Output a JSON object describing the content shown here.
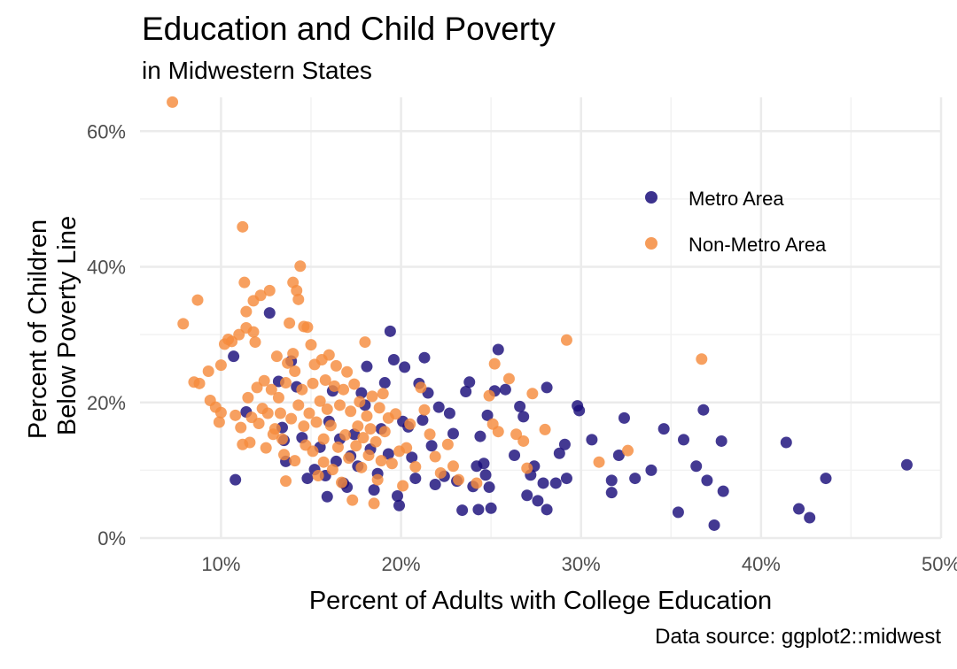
{
  "chart_data": {
    "type": "scatter",
    "title": "Education and Child Poverty",
    "subtitle": "in Midwestern States",
    "caption": "Data source: ggplot2::midwest",
    "xlabel": "Percent of Adults with College Education",
    "ylabel_lines": [
      "Percent of Children",
      "Below Poverty Line"
    ],
    "xlim": [
      5.5,
      50
    ],
    "ylim": [
      0,
      65
    ],
    "x_ticks": [
      10,
      20,
      30,
      40,
      50
    ],
    "x_tick_labels": [
      "10%",
      "20%",
      "30%",
      "40%",
      "50%"
    ],
    "y_ticks": [
      0,
      20,
      40,
      60
    ],
    "y_tick_labels": [
      "0%",
      "20%",
      "40%",
      "60%"
    ],
    "grid": true,
    "legend_position": "top-right",
    "colors": {
      "metro": "#1a0e7a",
      "nonmetro": "#f58b3d",
      "grid": "#ebebeb"
    },
    "series": [
      {
        "name": "Metro Area",
        "color": "#1a0e7a",
        "points": [
          [
            10.7,
            26.8
          ],
          [
            10.8,
            8.6
          ],
          [
            11.4,
            18.6
          ],
          [
            12.7,
            33.2
          ],
          [
            13.2,
            23.1
          ],
          [
            13.4,
            16.3
          ],
          [
            13.5,
            14.4
          ],
          [
            13.6,
            11.3
          ],
          [
            13.9,
            26.1
          ],
          [
            14.2,
            22.3
          ],
          [
            14.5,
            14.8
          ],
          [
            14.8,
            8.8
          ],
          [
            15.2,
            10.1
          ],
          [
            15.5,
            13.4
          ],
          [
            15.8,
            9.2
          ],
          [
            15.9,
            6.1
          ],
          [
            16.0,
            17.2
          ],
          [
            16.2,
            21.7
          ],
          [
            16.4,
            11.3
          ],
          [
            16.6,
            14.6
          ],
          [
            16.8,
            8.1
          ],
          [
            17.0,
            7.5
          ],
          [
            17.2,
            12.1
          ],
          [
            17.4,
            15.3
          ],
          [
            17.6,
            10.6
          ],
          [
            17.8,
            21.4
          ],
          [
            18.0,
            19.6
          ],
          [
            18.1,
            25.3
          ],
          [
            18.3,
            13.1
          ],
          [
            18.5,
            7.1
          ],
          [
            18.7,
            9.5
          ],
          [
            18.9,
            16.1
          ],
          [
            19.1,
            22.9
          ],
          [
            19.3,
            12.4
          ],
          [
            19.4,
            30.5
          ],
          [
            19.6,
            26.3
          ],
          [
            19.8,
            6.2
          ],
          [
            19.9,
            4.8
          ],
          [
            20.1,
            17.2
          ],
          [
            20.2,
            25.2
          ],
          [
            20.4,
            16.4
          ],
          [
            20.6,
            11.9
          ],
          [
            20.8,
            8.8
          ],
          [
            21.0,
            22.8
          ],
          [
            21.2,
            17.4
          ],
          [
            21.3,
            26.6
          ],
          [
            21.5,
            21.4
          ],
          [
            21.7,
            13.6
          ],
          [
            21.9,
            7.9
          ],
          [
            22.1,
            19.3
          ],
          [
            22.4,
            9.1
          ],
          [
            22.7,
            18.4
          ],
          [
            22.9,
            15.4
          ],
          [
            23.1,
            8.4
          ],
          [
            23.4,
            4.1
          ],
          [
            23.6,
            21.6
          ],
          [
            23.8,
            23.0
          ],
          [
            24.0,
            7.6
          ],
          [
            24.2,
            10.6
          ],
          [
            24.3,
            4.2
          ],
          [
            24.4,
            15.0
          ],
          [
            24.6,
            11.0
          ],
          [
            24.7,
            9.3
          ],
          [
            24.8,
            18.1
          ],
          [
            24.9,
            7.5
          ],
          [
            25.0,
            4.4
          ],
          [
            25.2,
            21.7
          ],
          [
            25.4,
            27.8
          ],
          [
            25.8,
            21.9
          ],
          [
            26.3,
            12.2
          ],
          [
            26.6,
            19.4
          ],
          [
            26.8,
            17.9
          ],
          [
            27.0,
            6.3
          ],
          [
            27.2,
            9.3
          ],
          [
            27.4,
            10.6
          ],
          [
            27.6,
            5.5
          ],
          [
            27.9,
            8.1
          ],
          [
            28.1,
            22.2
          ],
          [
            28.1,
            4.2
          ],
          [
            28.6,
            8.1
          ],
          [
            28.8,
            12.5
          ],
          [
            29.1,
            13.8
          ],
          [
            29.2,
            8.8
          ],
          [
            29.8,
            19.5
          ],
          [
            29.9,
            18.8
          ],
          [
            30.6,
            14.5
          ],
          [
            31.7,
            8.5
          ],
          [
            31.7,
            6.7
          ],
          [
            32.1,
            12.2
          ],
          [
            32.4,
            17.7
          ],
          [
            33.0,
            8.8
          ],
          [
            33.9,
            10.0
          ],
          [
            34.6,
            16.1
          ],
          [
            35.4,
            3.8
          ],
          [
            35.7,
            14.5
          ],
          [
            36.4,
            10.6
          ],
          [
            36.8,
            18.9
          ],
          [
            37.0,
            8.5
          ],
          [
            37.4,
            1.9
          ],
          [
            37.8,
            14.3
          ],
          [
            37.9,
            6.9
          ],
          [
            41.4,
            14.1
          ],
          [
            42.1,
            4.3
          ],
          [
            42.7,
            3.0
          ],
          [
            43.6,
            8.8
          ],
          [
            48.1,
            10.8
          ]
        ]
      },
      {
        "name": "Non-Metro Area",
        "color": "#f58b3d",
        "points": [
          [
            7.3,
            64.3
          ],
          [
            7.9,
            31.6
          ],
          [
            8.5,
            23.0
          ],
          [
            8.7,
            35.1
          ],
          [
            8.8,
            22.8
          ],
          [
            9.3,
            24.6
          ],
          [
            9.4,
            20.3
          ],
          [
            9.7,
            19.3
          ],
          [
            9.9,
            17.1
          ],
          [
            10.0,
            25.5
          ],
          [
            10.0,
            18.5
          ],
          [
            10.2,
            28.6
          ],
          [
            10.4,
            29.3
          ],
          [
            10.6,
            29.0
          ],
          [
            10.8,
            18.1
          ],
          [
            11.0,
            30.0
          ],
          [
            11.1,
            16.3
          ],
          [
            11.2,
            13.8
          ],
          [
            11.2,
            45.9
          ],
          [
            11.3,
            37.7
          ],
          [
            11.4,
            31.0
          ],
          [
            11.4,
            33.4
          ],
          [
            11.5,
            20.7
          ],
          [
            11.6,
            14.1
          ],
          [
            11.7,
            17.8
          ],
          [
            11.8,
            30.4
          ],
          [
            11.8,
            35.0
          ],
          [
            11.9,
            28.9
          ],
          [
            12.0,
            22.2
          ],
          [
            12.1,
            16.9
          ],
          [
            12.2,
            35.8
          ],
          [
            12.3,
            19.1
          ],
          [
            12.4,
            23.2
          ],
          [
            12.5,
            13.3
          ],
          [
            12.6,
            18.4
          ],
          [
            12.7,
            36.5
          ],
          [
            12.8,
            21.9
          ],
          [
            12.9,
            15.3
          ],
          [
            13.0,
            16.1
          ],
          [
            13.1,
            26.8
          ],
          [
            13.2,
            20.7
          ],
          [
            13.3,
            18.4
          ],
          [
            13.4,
            14.6
          ],
          [
            13.5,
            12.3
          ],
          [
            13.6,
            22.9
          ],
          [
            13.6,
            8.4
          ],
          [
            13.7,
            25.8
          ],
          [
            13.8,
            31.7
          ],
          [
            13.9,
            17.6
          ],
          [
            14.0,
            37.7
          ],
          [
            14.0,
            27.2
          ],
          [
            14.1,
            11.4
          ],
          [
            14.1,
            24.6
          ],
          [
            14.2,
            36.5
          ],
          [
            14.3,
            35.2
          ],
          [
            14.3,
            19.6
          ],
          [
            14.4,
            40.1
          ],
          [
            14.5,
            21.9
          ],
          [
            14.6,
            31.2
          ],
          [
            14.6,
            16.5
          ],
          [
            14.7,
            13.7
          ],
          [
            14.8,
            31.1
          ],
          [
            14.9,
            18.4
          ],
          [
            15.0,
            28.5
          ],
          [
            15.1,
            12.8
          ],
          [
            15.1,
            22.8
          ],
          [
            15.2,
            25.6
          ],
          [
            15.3,
            17.1
          ],
          [
            15.4,
            9.2
          ],
          [
            15.5,
            20.2
          ],
          [
            15.6,
            26.3
          ],
          [
            15.7,
            14.6
          ],
          [
            15.7,
            11.2
          ],
          [
            15.8,
            23.3
          ],
          [
            15.9,
            19.0
          ],
          [
            16.0,
            27.0
          ],
          [
            16.1,
            16.6
          ],
          [
            16.2,
            10.1
          ],
          [
            16.3,
            22.4
          ],
          [
            16.4,
            25.4
          ],
          [
            16.5,
            13.4
          ],
          [
            16.6,
            19.6
          ],
          [
            16.7,
            8.2
          ],
          [
            16.8,
            21.9
          ],
          [
            16.9,
            15.2
          ],
          [
            17.0,
            24.5
          ],
          [
            17.1,
            11.8
          ],
          [
            17.2,
            18.7
          ],
          [
            17.3,
            5.6
          ],
          [
            17.4,
            22.7
          ],
          [
            17.5,
            13.6
          ],
          [
            17.6,
            16.5
          ],
          [
            17.7,
            20.1
          ],
          [
            17.8,
            10.4
          ],
          [
            17.9,
            14.8
          ],
          [
            18.0,
            28.9
          ],
          [
            18.1,
            18.0
          ],
          [
            18.2,
            12.2
          ],
          [
            18.3,
            16.1
          ],
          [
            18.4,
            20.9
          ],
          [
            18.5,
            5.1
          ],
          [
            18.6,
            14.2
          ],
          [
            18.7,
            8.6
          ],
          [
            18.8,
            19.2
          ],
          [
            18.9,
            11.4
          ],
          [
            19.0,
            21.3
          ],
          [
            19.1,
            15.7
          ],
          [
            19.3,
            17.7
          ],
          [
            19.5,
            11.0
          ],
          [
            19.7,
            18.3
          ],
          [
            19.9,
            12.8
          ],
          [
            20.1,
            7.7
          ],
          [
            20.3,
            13.3
          ],
          [
            20.5,
            16.8
          ],
          [
            20.8,
            10.5
          ],
          [
            21.1,
            22.2
          ],
          [
            21.3,
            18.9
          ],
          [
            21.6,
            15.3
          ],
          [
            21.9,
            12.0
          ],
          [
            22.2,
            9.6
          ],
          [
            22.6,
            13.8
          ],
          [
            22.9,
            10.6
          ],
          [
            23.2,
            8.6
          ],
          [
            24.2,
            8.1
          ],
          [
            24.9,
            21.0
          ],
          [
            25.1,
            16.8
          ],
          [
            25.2,
            25.7
          ],
          [
            25.4,
            15.7
          ],
          [
            26.0,
            23.5
          ],
          [
            26.4,
            15.3
          ],
          [
            26.8,
            14.3
          ],
          [
            27.0,
            10.3
          ],
          [
            27.3,
            21.3
          ],
          [
            28.0,
            16.0
          ],
          [
            29.2,
            29.2
          ],
          [
            31.0,
            11.2
          ],
          [
            32.6,
            12.9
          ],
          [
            36.7,
            26.4
          ]
        ]
      }
    ]
  }
}
